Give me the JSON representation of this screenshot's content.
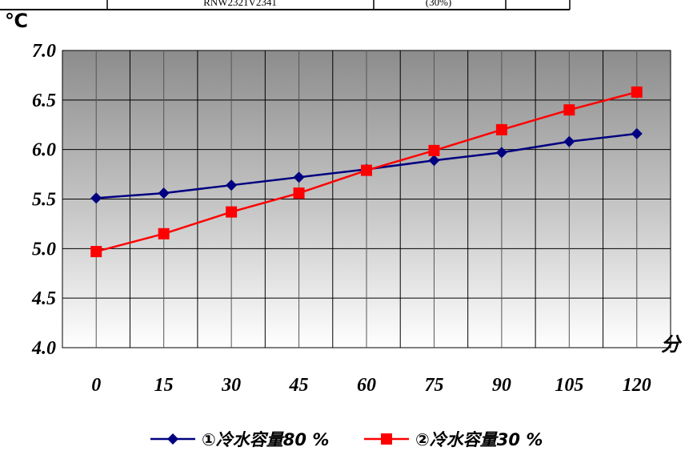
{
  "chart_data": {
    "type": "line",
    "header_fragment": [
      "RNW2321V2341",
      "(30%)"
    ],
    "y_unit": "℃",
    "x_unit": "分",
    "x": [
      0,
      15,
      30,
      45,
      60,
      75,
      90,
      105,
      120
    ],
    "x_tick_labels": [
      "0",
      "15",
      "30",
      "45",
      "60",
      "75",
      "90",
      "105",
      "120"
    ],
    "y_tick_labels": [
      "7.0",
      "6.5",
      "6.0",
      "5.5",
      "5.0",
      "4.5",
      "4.0"
    ],
    "ylim": [
      4.0,
      7.0
    ],
    "grid": true,
    "legend_position": "bottom",
    "series": [
      {
        "name": "①冷水容量80 %",
        "color": "#000080",
        "marker": "diamond",
        "values": [
          5.51,
          5.56,
          5.64,
          5.72,
          5.8,
          5.89,
          5.97,
          6.08,
          6.16
        ]
      },
      {
        "name": "②冷水容量30 %",
        "color": "#ff0000",
        "marker": "square",
        "values": [
          4.97,
          5.15,
          5.37,
          5.56,
          5.79,
          5.99,
          6.2,
          6.4,
          6.58
        ]
      }
    ]
  }
}
